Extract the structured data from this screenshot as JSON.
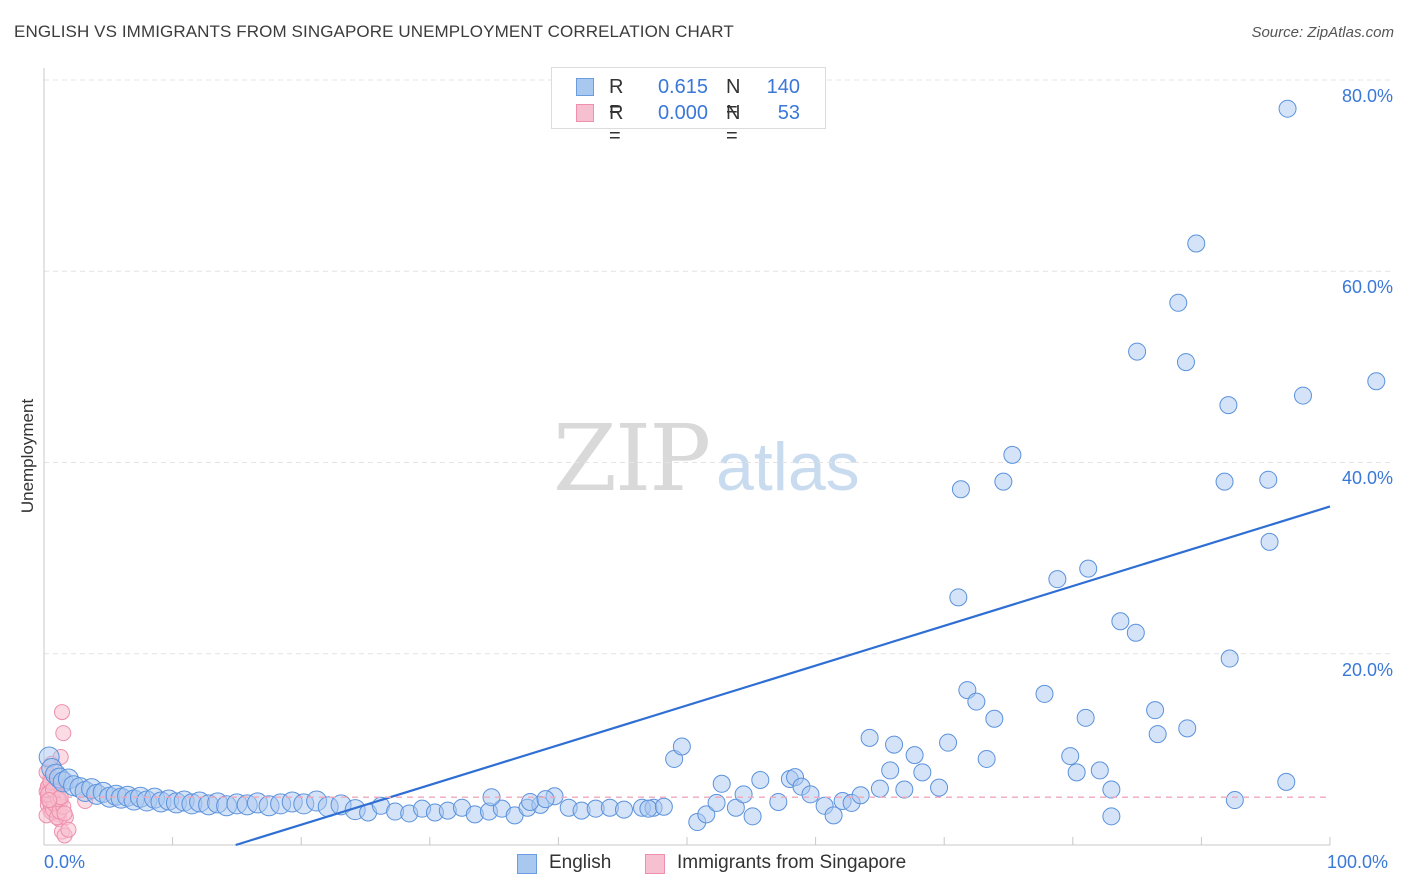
{
  "header": {
    "title": "ENGLISH VS IMMIGRANTS FROM SINGAPORE UNEMPLOYMENT CORRELATION CHART",
    "source": "Source: ZipAtlas.com"
  },
  "watermark": {
    "zip": "ZIP",
    "atlas": "atlas"
  },
  "stats": [
    {
      "r_label": "R =",
      "r_value": "0.615",
      "n_label": "N =",
      "n_value": "140",
      "color": "#a9c8f0",
      "border": "#6a9de0"
    },
    {
      "r_label": "R =",
      "r_value": "0.000",
      "n_label": "N =",
      "n_value": "53",
      "color": "#f7c0d0",
      "border": "#ee8fab"
    }
  ],
  "legend": [
    {
      "label": "English",
      "color": "#a9c8f0",
      "border": "#6a9de0"
    },
    {
      "label": "Immigrants from Singapore",
      "color": "#f7c0d0",
      "border": "#ee8fab"
    }
  ],
  "axis": {
    "x_min_label": "0.0%",
    "x_max_label": "100.0%",
    "y_label": "Unemployment",
    "y_ticks": [
      "20.0%",
      "40.0%",
      "60.0%",
      "80.0%"
    ]
  },
  "chart_data": {
    "type": "scatter",
    "title": "ENGLISH VS IMMIGRANTS FROM SINGAPORE UNEMPLOYMENT CORRELATION CHART",
    "xlabel": "",
    "ylabel": "Unemployment",
    "xlim": [
      0,
      100
    ],
    "ylim": [
      0,
      80
    ],
    "y_tick_values": [
      20,
      40,
      60,
      80
    ],
    "series": [
      {
        "name": "English",
        "color": "#a9c8f0",
        "stroke": "#5b92dc",
        "points": [
          [
            0.4,
            9.2
          ],
          [
            0.6,
            8.0
          ],
          [
            0.9,
            7.4
          ],
          [
            1.2,
            7.0
          ],
          [
            1.5,
            6.6
          ],
          [
            1.9,
            6.9
          ],
          [
            2.3,
            6.2
          ],
          [
            2.8,
            6.0
          ],
          [
            3.2,
            5.6
          ],
          [
            3.7,
            5.9
          ],
          [
            4.1,
            5.3
          ],
          [
            4.6,
            5.5
          ],
          [
            5.1,
            5.0
          ],
          [
            5.6,
            5.2
          ],
          [
            6.0,
            4.9
          ],
          [
            6.5,
            5.1
          ],
          [
            7.0,
            4.7
          ],
          [
            7.5,
            5.0
          ],
          [
            8.0,
            4.6
          ],
          [
            8.6,
            4.9
          ],
          [
            9.1,
            4.5
          ],
          [
            9.7,
            4.7
          ],
          [
            10.3,
            4.4
          ],
          [
            10.9,
            4.6
          ],
          [
            11.5,
            4.3
          ],
          [
            12.1,
            4.5
          ],
          [
            12.8,
            4.2
          ],
          [
            13.5,
            4.4
          ],
          [
            14.2,
            4.1
          ],
          [
            15.0,
            4.3
          ],
          [
            15.8,
            4.2
          ],
          [
            16.6,
            4.4
          ],
          [
            17.5,
            4.1
          ],
          [
            18.4,
            4.3
          ],
          [
            19.3,
            4.5
          ],
          [
            20.2,
            4.3
          ],
          [
            21.2,
            4.6
          ],
          [
            22.1,
            4.0
          ],
          [
            23.1,
            4.2
          ],
          [
            24.2,
            3.7
          ],
          [
            25.2,
            3.4
          ],
          [
            26.2,
            4.1
          ],
          [
            27.3,
            3.5
          ],
          [
            28.4,
            3.3
          ],
          [
            29.4,
            3.8
          ],
          [
            30.4,
            3.4
          ],
          [
            31.4,
            3.6
          ],
          [
            32.5,
            3.9
          ],
          [
            33.5,
            3.2
          ],
          [
            34.6,
            3.5
          ],
          [
            35.6,
            3.8
          ],
          [
            36.6,
            3.1
          ],
          [
            37.6,
            3.9
          ],
          [
            38.6,
            4.2
          ],
          [
            39.7,
            5.1
          ],
          [
            40.8,
            3.9
          ],
          [
            41.8,
            3.6
          ],
          [
            42.9,
            3.8
          ],
          [
            44.0,
            3.9
          ],
          [
            45.1,
            3.7
          ],
          [
            46.5,
            3.9
          ],
          [
            47.4,
            3.9
          ],
          [
            34.8,
            5.0
          ],
          [
            37.8,
            4.5
          ],
          [
            39.0,
            4.8
          ],
          [
            47.0,
            3.8
          ],
          [
            48.2,
            4.0
          ],
          [
            49.0,
            9.0
          ],
          [
            49.6,
            10.3
          ],
          [
            50.8,
            2.4
          ],
          [
            51.5,
            3.2
          ],
          [
            52.3,
            4.4
          ],
          [
            52.7,
            6.4
          ],
          [
            53.8,
            3.9
          ],
          [
            54.4,
            5.3
          ],
          [
            55.1,
            3.0
          ],
          [
            55.7,
            6.8
          ],
          [
            57.1,
            4.5
          ],
          [
            58.0,
            6.9
          ],
          [
            58.4,
            7.1
          ],
          [
            58.9,
            6.1
          ],
          [
            59.6,
            5.3
          ],
          [
            60.7,
            4.1
          ],
          [
            61.4,
            3.1
          ],
          [
            62.1,
            4.6
          ],
          [
            62.8,
            4.4
          ],
          [
            63.5,
            5.2
          ],
          [
            64.2,
            11.2
          ],
          [
            65.0,
            5.9
          ],
          [
            65.8,
            7.8
          ],
          [
            66.1,
            10.5
          ],
          [
            66.9,
            5.8
          ],
          [
            67.7,
            9.4
          ],
          [
            68.3,
            7.6
          ],
          [
            69.6,
            6.0
          ],
          [
            70.3,
            10.7
          ],
          [
            71.1,
            25.9
          ],
          [
            71.8,
            16.2
          ],
          [
            71.3,
            37.2
          ],
          [
            72.5,
            15.0
          ],
          [
            73.3,
            9.0
          ],
          [
            73.9,
            13.2
          ],
          [
            74.6,
            38.0
          ],
          [
            75.3,
            40.8
          ],
          [
            77.8,
            15.8
          ],
          [
            78.8,
            27.8
          ],
          [
            79.8,
            9.3
          ],
          [
            80.3,
            7.6
          ],
          [
            81.0,
            13.3
          ],
          [
            81.2,
            28.9
          ],
          [
            82.1,
            7.8
          ],
          [
            83.0,
            5.8
          ],
          [
            83.0,
            3.0
          ],
          [
            83.7,
            23.4
          ],
          [
            84.9,
            22.2
          ],
          [
            85.0,
            51.6
          ],
          [
            86.4,
            14.1
          ],
          [
            86.6,
            11.6
          ],
          [
            88.2,
            56.7
          ],
          [
            88.9,
            12.2
          ],
          [
            88.8,
            50.5
          ],
          [
            89.6,
            62.9
          ],
          [
            92.1,
            46.0
          ],
          [
            92.6,
            4.7
          ],
          [
            91.8,
            38.0
          ],
          [
            92.2,
            19.5
          ],
          [
            95.2,
            38.2
          ],
          [
            95.3,
            31.7
          ],
          [
            96.6,
            6.6
          ],
          [
            97.9,
            47.0
          ],
          [
            96.7,
            77.0
          ],
          [
            103.6,
            48.5
          ]
        ],
        "trendline": {
          "x": [
            0,
            100
          ],
          "y": [
            -6.2,
            35.4
          ]
        }
      },
      {
        "name": "Immigrants from Singapore",
        "color": "#f7c0d0",
        "stroke": "#ee8fab",
        "points": [
          [
            0.2,
            5.6
          ],
          [
            0.3,
            4.8
          ],
          [
            0.4,
            6.3
          ],
          [
            0.5,
            7.1
          ],
          [
            0.6,
            8.5
          ],
          [
            0.7,
            5.1
          ],
          [
            0.8,
            4.4
          ],
          [
            0.9,
            6.0
          ],
          [
            1.0,
            3.8
          ],
          [
            1.1,
            5.4
          ],
          [
            1.2,
            4.7
          ],
          [
            1.3,
            9.2
          ],
          [
            1.4,
            13.9
          ],
          [
            1.5,
            11.7
          ],
          [
            0.3,
            4.2
          ],
          [
            0.5,
            3.6
          ],
          [
            0.6,
            5.9
          ],
          [
            0.8,
            6.8
          ],
          [
            1.0,
            4.9
          ],
          [
            1.1,
            3.2
          ],
          [
            1.2,
            2.7
          ],
          [
            1.4,
            1.4
          ],
          [
            1.6,
            1.0
          ],
          [
            1.7,
            2.9
          ],
          [
            0.2,
            7.6
          ],
          [
            0.4,
            5.0
          ],
          [
            0.7,
            4.5
          ],
          [
            0.9,
            3.9
          ],
          [
            1.0,
            5.2
          ],
          [
            0.3,
            6.1
          ],
          [
            0.5,
            4.3
          ],
          [
            0.6,
            3.4
          ],
          [
            0.8,
            5.7
          ],
          [
            0.9,
            4.1
          ],
          [
            1.1,
            6.4
          ],
          [
            1.3,
            4.6
          ],
          [
            0.2,
            3.1
          ],
          [
            0.4,
            5.5
          ],
          [
            0.6,
            4.9
          ],
          [
            0.7,
            3.7
          ],
          [
            0.8,
            4.3
          ],
          [
            1.0,
            2.9
          ],
          [
            1.2,
            3.5
          ],
          [
            1.5,
            4.0
          ],
          [
            0.3,
            5.3
          ],
          [
            0.5,
            6.6
          ],
          [
            0.7,
            5.8
          ],
          [
            1.1,
            4.8
          ],
          [
            1.3,
            5.0
          ],
          [
            1.6,
            3.3
          ],
          [
            3.2,
            4.6
          ],
          [
            1.9,
            1.6
          ],
          [
            0.4,
            4.7
          ]
        ],
        "trendline": {
          "x": [
            0,
            100
          ],
          "y": [
            5.0,
            5.0
          ],
          "style": "dashed"
        }
      }
    ]
  }
}
